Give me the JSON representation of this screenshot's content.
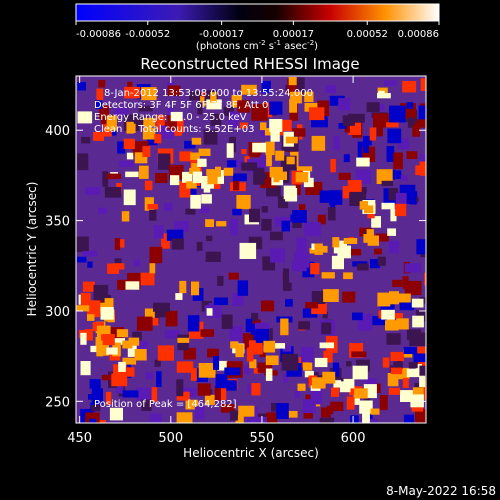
{
  "chart_data": {
    "type": "heatmap",
    "title": "Reconstructed RHESSI Image",
    "xlabel": "Heliocentric X (arcsec)",
    "ylabel": "Heliocentric Y (arcsec)",
    "xlim": [
      448,
      640
    ],
    "ylim": [
      238,
      430
    ],
    "xticks": [
      450,
      500,
      550,
      600
    ],
    "yticks": [
      250,
      300,
      350,
      400
    ],
    "colorbar": {
      "min": -0.00086,
      "max": 0.00086,
      "tick_values": [
        -0.00086,
        -0.00052,
        -0.00017,
        0.00017,
        0.00052,
        0.00086
      ],
      "tick_labels": [
        "-0.00086",
        "-0.00052",
        "-0.00017",
        "0.00017",
        "0.00052",
        "0.00086"
      ],
      "units_text": "(photons cm",
      "units_exp1": "-2",
      "units_mid": " s",
      "units_exp2": "-1",
      "units_tail": " asec",
      "units_exp3": "-2",
      "units_close": ")"
    },
    "annotations": {
      "time_range": "8-Jan-2012 13:53:08.000 to 13:55:24.000",
      "detectors": "Detectors: 3F 4F 5F 6F 7F 8F, Att 0",
      "energy_range": "Energy Range: 12.0 - 25.0 keV",
      "clean_info": "Clean     Total counts: 5.52E+03",
      "peak_position": "Position of Peak = [464,282]"
    },
    "peak": {
      "x": 464,
      "y": 282
    },
    "footer_date": "8-May-2022 16:58",
    "colormap": [
      "#0000c8",
      "#5a1bb4",
      "#5a2d8c",
      "#3c1450",
      "#8c0000",
      "#ff3000",
      "#ff9a00",
      "#ffffd0"
    ]
  }
}
